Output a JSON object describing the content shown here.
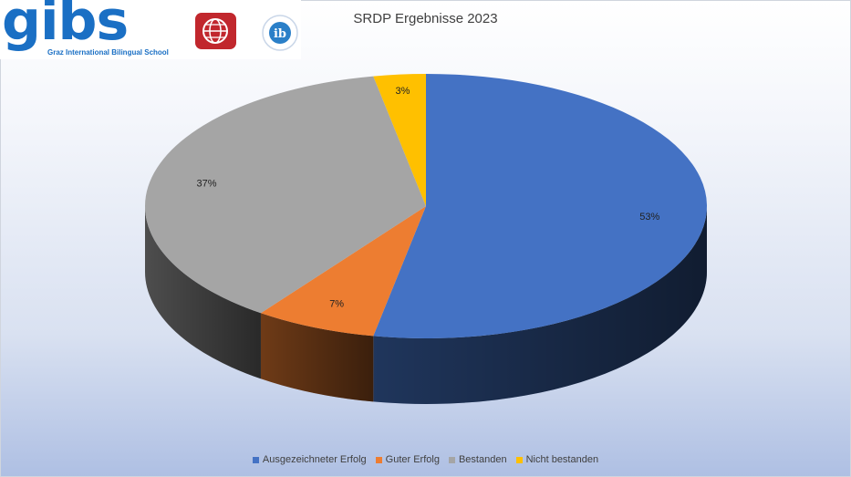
{
  "logo": {
    "wordmark": "gibs",
    "subtitle": "Graz International Bilingual School",
    "ib_mark": "ib",
    "accent": "#1a6fc4",
    "globe_color": "#c1272d"
  },
  "chart_data": {
    "type": "pie",
    "style": "3d",
    "title": "SRDP Ergebnisse 2023",
    "categories": [
      "Ausgezeichneter Erfolg",
      "Guter Erfolg",
      "Bestanden",
      "Nicht bestanden"
    ],
    "values": [
      53,
      7,
      37,
      3
    ],
    "data_labels": [
      "53%",
      "7%",
      "37%",
      "3%"
    ],
    "colors": [
      "#4472c4",
      "#ed7d31",
      "#a5a5a5",
      "#ffc000"
    ],
    "legend_position": "bottom"
  }
}
